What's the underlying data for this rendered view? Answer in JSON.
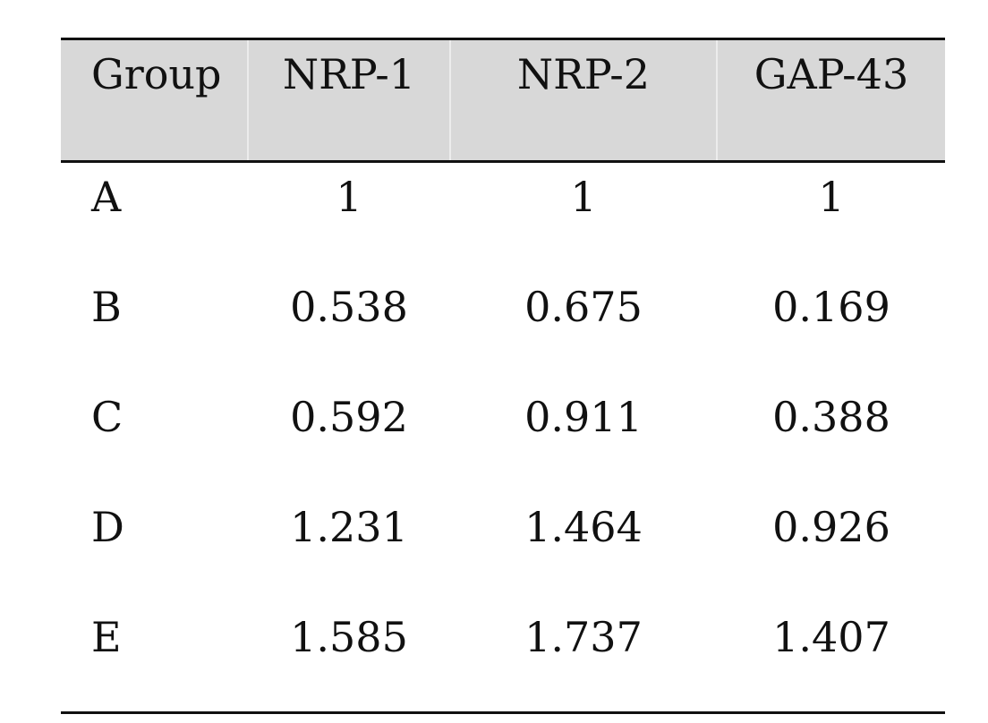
{
  "table": {
    "columns": [
      "Group",
      "NRP-1",
      "NRP-2",
      "GAP-43"
    ],
    "rows": [
      [
        "A",
        "1",
        "1",
        "1"
      ],
      [
        "B",
        "0.538",
        "0.675",
        "0.169"
      ],
      [
        "C",
        "0.592",
        "0.911",
        "0.388"
      ],
      [
        "D",
        "1.231",
        "1.464",
        "0.926"
      ],
      [
        "E",
        "1.585",
        "1.737",
        "1.407"
      ]
    ]
  },
  "colors": {
    "header_background": "#d8d8d8",
    "rule": "#111111"
  }
}
